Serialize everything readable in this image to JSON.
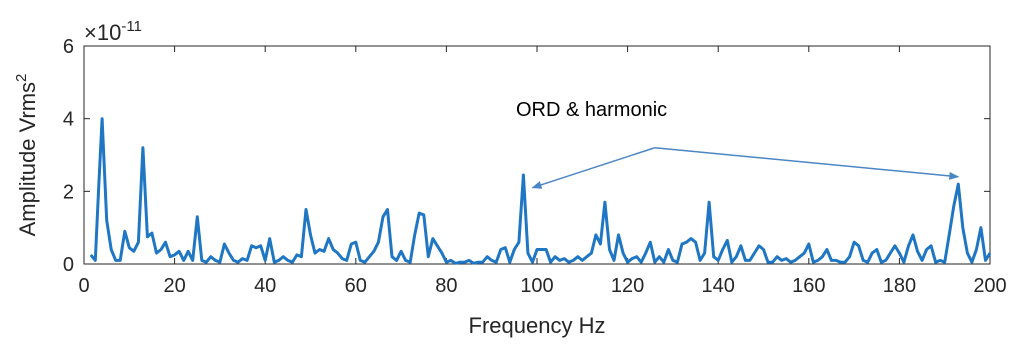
{
  "chart_data": {
    "type": "line",
    "title": "",
    "xlabel": "Frequency Hz",
    "ylabel": "Amplitude Vrms",
    "ylabel_superscript": "2",
    "exponent_label": "×10",
    "exponent_power": "-11",
    "xlim": [
      0,
      200
    ],
    "ylim": [
      0,
      6
    ],
    "xticks": [
      "0",
      "20",
      "40",
      "60",
      "80",
      "100",
      "120",
      "140",
      "160",
      "180",
      "200"
    ],
    "yticks": [
      "0",
      "2",
      "4",
      "6"
    ],
    "grid": false,
    "line_color": "#1f77c4",
    "annotation": {
      "text": "ORD & harmonic",
      "arrow_from": [
        126,
        3.2
      ],
      "arrow_targets": [
        [
          99,
          2.1
        ],
        [
          193,
          2.4
        ]
      ]
    },
    "series": [
      {
        "values": [
          [
            1.5,
            0.25
          ],
          [
            2.5,
            0.1
          ],
          [
            3.2,
            2.0
          ],
          [
            4.0,
            4.0
          ],
          [
            5.0,
            1.2
          ],
          [
            6.0,
            0.4
          ],
          [
            7.0,
            0.1
          ],
          [
            8.0,
            0.1
          ],
          [
            9.0,
            0.9
          ],
          [
            10.0,
            0.45
          ],
          [
            11.0,
            0.35
          ],
          [
            12.0,
            0.6
          ],
          [
            13.0,
            3.2
          ],
          [
            14.0,
            0.75
          ],
          [
            15.0,
            0.85
          ],
          [
            16.0,
            0.3
          ],
          [
            17.0,
            0.4
          ],
          [
            18.0,
            0.6
          ],
          [
            19.0,
            0.2
          ],
          [
            20.0,
            0.25
          ],
          [
            21.0,
            0.35
          ],
          [
            22.0,
            0.1
          ],
          [
            23.0,
            0.35
          ],
          [
            24.0,
            0.1
          ],
          [
            25.0,
            1.3
          ],
          [
            26.0,
            0.1
          ],
          [
            27.0,
            0.05
          ],
          [
            28.0,
            0.2
          ],
          [
            29.0,
            0.1
          ],
          [
            30.0,
            0.05
          ],
          [
            31.0,
            0.55
          ],
          [
            32.0,
            0.3
          ],
          [
            33.0,
            0.1
          ],
          [
            34.0,
            0.05
          ],
          [
            35.0,
            0.15
          ],
          [
            36.0,
            0.1
          ],
          [
            37.0,
            0.5
          ],
          [
            38.0,
            0.45
          ],
          [
            39.0,
            0.5
          ],
          [
            40.0,
            0.1
          ],
          [
            41.0,
            0.7
          ],
          [
            42.0,
            0.05
          ],
          [
            43.0,
            0.1
          ],
          [
            44.0,
            0.2
          ],
          [
            45.0,
            0.1
          ],
          [
            46.0,
            0.05
          ],
          [
            47.0,
            0.25
          ],
          [
            48.0,
            0.2
          ],
          [
            49.0,
            1.5
          ],
          [
            50.0,
            0.8
          ],
          [
            51.0,
            0.3
          ],
          [
            52.0,
            0.4
          ],
          [
            53.0,
            0.35
          ],
          [
            54.0,
            0.7
          ],
          [
            55.0,
            0.4
          ],
          [
            56.0,
            0.3
          ],
          [
            57.0,
            0.15
          ],
          [
            58.0,
            0.1
          ],
          [
            59.0,
            0.55
          ],
          [
            60.0,
            0.6
          ],
          [
            61.0,
            0.1
          ],
          [
            62.0,
            0.05
          ],
          [
            63.0,
            0.2
          ],
          [
            64.0,
            0.35
          ],
          [
            65.0,
            0.6
          ],
          [
            66.0,
            1.3
          ],
          [
            67.0,
            1.5
          ],
          [
            68.0,
            0.2
          ],
          [
            69.0,
            0.1
          ],
          [
            70.0,
            0.35
          ],
          [
            71.0,
            0.1
          ],
          [
            72.0,
            0.05
          ],
          [
            73.0,
            0.8
          ],
          [
            74.0,
            1.4
          ],
          [
            75.0,
            1.35
          ],
          [
            76.0,
            0.2
          ],
          [
            77.0,
            0.7
          ],
          [
            78.0,
            0.5
          ],
          [
            79.0,
            0.3
          ],
          [
            80.0,
            0.05
          ],
          [
            81.0,
            0.1
          ],
          [
            82.0,
            0.02
          ],
          [
            83.0,
            0.05
          ],
          [
            84.0,
            0.05
          ],
          [
            85.0,
            0.1
          ],
          [
            86.0,
            0.02
          ],
          [
            87.0,
            0.05
          ],
          [
            88.0,
            0.05
          ],
          [
            89.0,
            0.2
          ],
          [
            90.0,
            0.1
          ],
          [
            91.0,
            0.05
          ],
          [
            92.0,
            0.4
          ],
          [
            93.0,
            0.45
          ],
          [
            94.0,
            0.05
          ],
          [
            95.0,
            0.4
          ],
          [
            96.0,
            0.6
          ],
          [
            97.0,
            2.45
          ],
          [
            98.0,
            0.3
          ],
          [
            99.0,
            0.05
          ],
          [
            100.0,
            0.4
          ],
          [
            101.0,
            0.4
          ],
          [
            102.0,
            0.4
          ],
          [
            103.0,
            0.05
          ],
          [
            104.0,
            0.2
          ],
          [
            105.0,
            0.1
          ],
          [
            106.0,
            0.15
          ],
          [
            107.0,
            0.05
          ],
          [
            108.0,
            0.1
          ],
          [
            109.0,
            0.2
          ],
          [
            110.0,
            0.1
          ],
          [
            111.0,
            0.2
          ],
          [
            112.0,
            0.3
          ],
          [
            113.0,
            0.8
          ],
          [
            114.0,
            0.55
          ],
          [
            115.0,
            1.7
          ],
          [
            116.0,
            0.4
          ],
          [
            117.0,
            0.1
          ],
          [
            118.0,
            0.8
          ],
          [
            119.0,
            0.3
          ],
          [
            120.0,
            0.05
          ],
          [
            121.0,
            0.15
          ],
          [
            122.0,
            0.2
          ],
          [
            123.0,
            0.05
          ],
          [
            124.0,
            0.3
          ],
          [
            125.0,
            0.6
          ],
          [
            126.0,
            0.05
          ],
          [
            127.0,
            0.2
          ],
          [
            128.0,
            0.05
          ],
          [
            129.0,
            0.4
          ],
          [
            130.0,
            0.1
          ],
          [
            131.0,
            0.05
          ],
          [
            132.0,
            0.55
          ],
          [
            133.0,
            0.6
          ],
          [
            134.0,
            0.7
          ],
          [
            135.0,
            0.6
          ],
          [
            136.0,
            0.1
          ],
          [
            137.0,
            0.3
          ],
          [
            138.0,
            1.7
          ],
          [
            139.0,
            0.2
          ],
          [
            140.0,
            0.1
          ],
          [
            141.0,
            0.4
          ],
          [
            142.0,
            0.65
          ],
          [
            143.0,
            0.05
          ],
          [
            144.0,
            0.2
          ],
          [
            145.0,
            0.5
          ],
          [
            146.0,
            0.1
          ],
          [
            147.0,
            0.1
          ],
          [
            148.0,
            0.3
          ],
          [
            149.0,
            0.5
          ],
          [
            150.0,
            0.4
          ],
          [
            151.0,
            0.05
          ],
          [
            152.0,
            0.05
          ],
          [
            153.0,
            0.2
          ],
          [
            154.0,
            0.1
          ],
          [
            155.0,
            0.15
          ],
          [
            156.0,
            0.05
          ],
          [
            157.0,
            0.1
          ],
          [
            158.0,
            0.2
          ],
          [
            159.0,
            0.3
          ],
          [
            160.0,
            0.55
          ],
          [
            161.0,
            0.05
          ],
          [
            162.0,
            0.1
          ],
          [
            163.0,
            0.2
          ],
          [
            164.0,
            0.4
          ],
          [
            165.0,
            0.1
          ],
          [
            166.0,
            0.1
          ],
          [
            167.0,
            0.05
          ],
          [
            168.0,
            0.05
          ],
          [
            169.0,
            0.2
          ],
          [
            170.0,
            0.6
          ],
          [
            171.0,
            0.5
          ],
          [
            172.0,
            0.1
          ],
          [
            173.0,
            0.05
          ],
          [
            174.0,
            0.3
          ],
          [
            175.0,
            0.4
          ],
          [
            176.0,
            0.05
          ],
          [
            177.0,
            0.1
          ],
          [
            178.0,
            0.3
          ],
          [
            179.0,
            0.5
          ],
          [
            180.0,
            0.3
          ],
          [
            181.0,
            0.05
          ],
          [
            182.0,
            0.5
          ],
          [
            183.0,
            0.8
          ],
          [
            184.0,
            0.35
          ],
          [
            185.0,
            0.1
          ],
          [
            186.0,
            0.4
          ],
          [
            187.0,
            0.5
          ],
          [
            188.0,
            0.05
          ],
          [
            189.0,
            0.1
          ],
          [
            190.0,
            0.05
          ],
          [
            191.0,
            0.8
          ],
          [
            192.0,
            1.6
          ],
          [
            193.0,
            2.2
          ],
          [
            194.0,
            1.0
          ],
          [
            195.0,
            0.3
          ],
          [
            196.0,
            0.05
          ],
          [
            197.0,
            0.4
          ],
          [
            198.0,
            1.0
          ],
          [
            199.0,
            0.1
          ],
          [
            200.0,
            0.3
          ]
        ]
      }
    ]
  }
}
